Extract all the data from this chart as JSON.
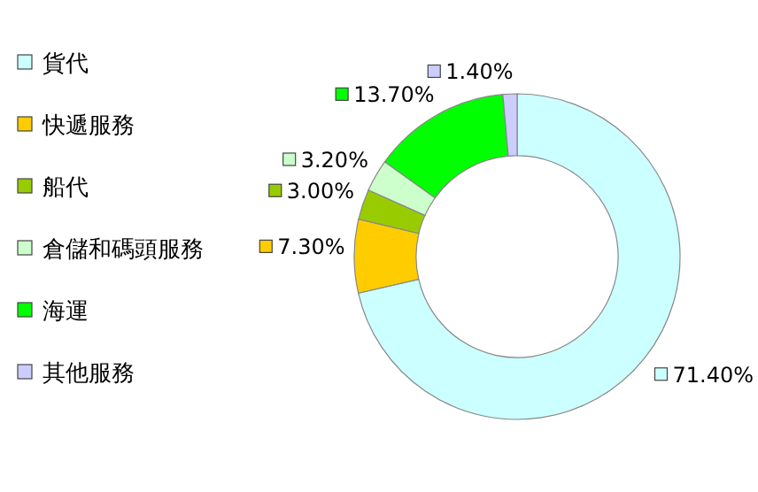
{
  "chart_data": {
    "type": "donut",
    "categories": [
      "貨代",
      "快遞服務",
      "船代",
      "倉儲和碼頭服務",
      "海運",
      "其他服務"
    ],
    "values": [
      71.4,
      7.3,
      3.0,
      3.2,
      13.7,
      1.4
    ],
    "value_labels": [
      "71.40%",
      "7.30%",
      "3.00%",
      "3.20%",
      "13.70%",
      "1.40%"
    ],
    "colors": [
      "#ccffff",
      "#ffcc00",
      "#99cc00",
      "#ccffcc",
      "#00ff00",
      "#ccccff"
    ],
    "legend": "left"
  }
}
